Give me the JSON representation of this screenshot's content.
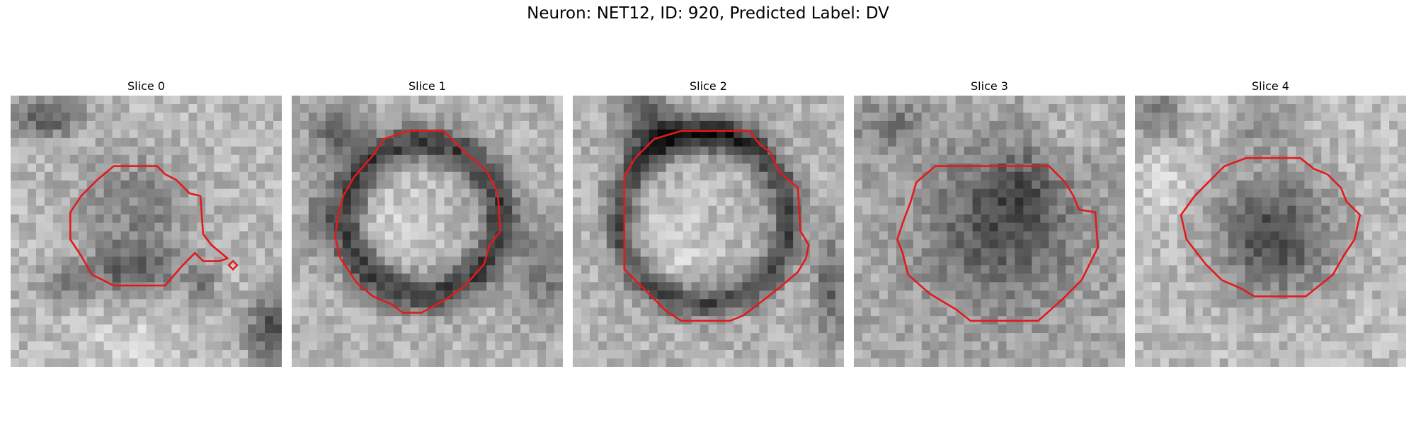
{
  "figure": {
    "title": "Neuron: NET12, ID: 920, Predicted Label: DV"
  },
  "slices": [
    {
      "label": "Slice 0"
    },
    {
      "label": "Slice 1"
    },
    {
      "label": "Slice 2"
    },
    {
      "label": "Slice 3"
    },
    {
      "label": "Slice 4"
    }
  ],
  "colors": {
    "contour": "#e31a1c",
    "background": "#ffffff"
  }
}
